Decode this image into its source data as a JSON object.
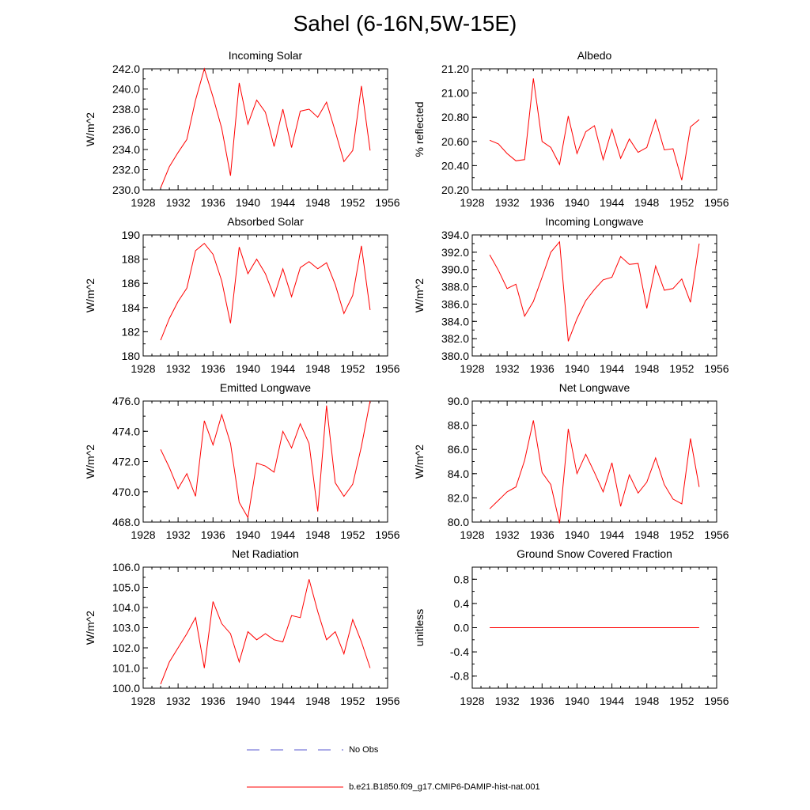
{
  "figure": {
    "title": "Sahel (6-16N,5W-15E)"
  },
  "legend": {
    "items": [
      {
        "label": "No Obs",
        "color": "#5a5ad0",
        "dash": true
      },
      {
        "label": "b.e21.B1850.f09_g17.CMIP6-DAMIP-hist-nat.001",
        "color": "#ff0000",
        "dash": false
      }
    ]
  },
  "chart_data": [
    {
      "type": "line",
      "title": "Incoming Solar",
      "ylabel": "W/m^2",
      "xlim": [
        1928,
        1956
      ],
      "ylim": [
        230.0,
        242.0
      ],
      "yticks": [
        "230.0",
        "232.0",
        "234.0",
        "236.0",
        "238.0",
        "240.0",
        "242.0"
      ],
      "xticks": [
        "1928",
        "1932",
        "1936",
        "1940",
        "1944",
        "1948",
        "1952",
        "1956"
      ],
      "x": [
        1930,
        1931,
        1932,
        1933,
        1934,
        1935,
        1936,
        1937,
        1938,
        1939,
        1940,
        1941,
        1942,
        1943,
        1944,
        1945,
        1946,
        1947,
        1948,
        1949,
        1950,
        1951,
        1952,
        1953,
        1954
      ],
      "series": [
        {
          "color": "#ff0000",
          "values": [
            230.2,
            232.3,
            233.7,
            235.0,
            238.9,
            242.0,
            239.2,
            236.1,
            231.4,
            240.6,
            236.5,
            238.9,
            237.7,
            234.3,
            238.0,
            234.2,
            237.8,
            238.0,
            237.2,
            238.7,
            235.8,
            232.8,
            233.9,
            240.3,
            233.9
          ]
        }
      ]
    },
    {
      "type": "line",
      "title": "Albedo",
      "ylabel": "% reflected",
      "xlim": [
        1928,
        1956
      ],
      "ylim": [
        20.2,
        21.2
      ],
      "yticks": [
        "20.20",
        "20.40",
        "20.60",
        "20.80",
        "21.00",
        "21.20"
      ],
      "xticks": [
        "1928",
        "1932",
        "1936",
        "1940",
        "1944",
        "1948",
        "1952",
        "1956"
      ],
      "x": [
        1930,
        1931,
        1932,
        1933,
        1934,
        1935,
        1936,
        1937,
        1938,
        1939,
        1940,
        1941,
        1942,
        1943,
        1944,
        1945,
        1946,
        1947,
        1948,
        1949,
        1950,
        1951,
        1952,
        1953,
        1954
      ],
      "series": [
        {
          "color": "#ff0000",
          "values": [
            20.61,
            20.58,
            20.5,
            20.44,
            20.45,
            21.12,
            20.6,
            20.55,
            20.41,
            20.81,
            20.5,
            20.68,
            20.73,
            20.45,
            20.7,
            20.46,
            20.62,
            20.51,
            20.55,
            20.78,
            20.53,
            20.54,
            20.28,
            20.72,
            20.78
          ]
        }
      ]
    },
    {
      "type": "line",
      "title": "Absorbed Solar",
      "ylabel": "W/m^2",
      "xlim": [
        1928,
        1956
      ],
      "ylim": [
        180,
        190
      ],
      "yticks": [
        "180",
        "182",
        "184",
        "186",
        "188",
        "190"
      ],
      "xticks": [
        "1928",
        "1932",
        "1936",
        "1940",
        "1944",
        "1948",
        "1952",
        "1956"
      ],
      "x": [
        1930,
        1931,
        1932,
        1933,
        1934,
        1935,
        1936,
        1937,
        1938,
        1939,
        1940,
        1941,
        1942,
        1943,
        1944,
        1945,
        1946,
        1947,
        1948,
        1949,
        1950,
        1951,
        1952,
        1953,
        1954
      ],
      "series": [
        {
          "color": "#ff0000",
          "values": [
            181.3,
            183.1,
            184.5,
            185.6,
            188.7,
            189.3,
            188.4,
            186.2,
            182.7,
            189.0,
            186.8,
            188.0,
            186.8,
            184.9,
            187.2,
            184.9,
            187.3,
            187.8,
            187.2,
            187.7,
            185.9,
            183.5,
            185.0,
            189.1,
            183.8
          ]
        }
      ]
    },
    {
      "type": "line",
      "title": "Incoming Longwave",
      "ylabel": "W/m^2",
      "xlim": [
        1928,
        1956
      ],
      "ylim": [
        380.0,
        394.0
      ],
      "yticks": [
        "380.0",
        "382.0",
        "384.0",
        "386.0",
        "388.0",
        "390.0",
        "392.0",
        "394.0"
      ],
      "xticks": [
        "1928",
        "1932",
        "1936",
        "1940",
        "1944",
        "1948",
        "1952",
        "1956"
      ],
      "x": [
        1930,
        1931,
        1932,
        1933,
        1934,
        1935,
        1936,
        1937,
        1938,
        1939,
        1940,
        1941,
        1942,
        1943,
        1944,
        1945,
        1946,
        1947,
        1948,
        1949,
        1950,
        1951,
        1952,
        1953,
        1954
      ],
      "series": [
        {
          "color": "#ff0000",
          "values": [
            391.7,
            389.9,
            387.8,
            388.3,
            384.6,
            386.3,
            389.1,
            392.0,
            393.2,
            381.7,
            384.3,
            386.4,
            387.7,
            388.8,
            389.1,
            391.5,
            390.6,
            390.7,
            385.5,
            390.4,
            387.6,
            387.8,
            388.9,
            386.2,
            393.0
          ]
        }
      ]
    },
    {
      "type": "line",
      "title": "Emitted Longwave",
      "ylabel": "W/m^2",
      "xlim": [
        1928,
        1956
      ],
      "ylim": [
        468.0,
        476.0
      ],
      "yticks": [
        "468.0",
        "470.0",
        "472.0",
        "474.0",
        "476.0"
      ],
      "xticks": [
        "1928",
        "1932",
        "1936",
        "1940",
        "1944",
        "1948",
        "1952",
        "1956"
      ],
      "x": [
        1930,
        1931,
        1932,
        1933,
        1934,
        1935,
        1936,
        1937,
        1938,
        1939,
        1940,
        1941,
        1942,
        1943,
        1944,
        1945,
        1946,
        1947,
        1948,
        1949,
        1950,
        1951,
        1952,
        1953,
        1954
      ],
      "series": [
        {
          "color": "#ff0000",
          "values": [
            472.8,
            471.6,
            470.2,
            471.2,
            469.7,
            474.7,
            473.1,
            475.1,
            473.2,
            469.3,
            468.3,
            471.9,
            471.7,
            471.3,
            474.0,
            472.9,
            474.5,
            473.2,
            468.7,
            475.7,
            470.6,
            469.7,
            470.5,
            473.0,
            476.0
          ]
        }
      ]
    },
    {
      "type": "line",
      "title": "Net Longwave",
      "ylabel": "W/m^2",
      "xlim": [
        1928,
        1956
      ],
      "ylim": [
        80.0,
        90.0
      ],
      "yticks": [
        "80.0",
        "82.0",
        "84.0",
        "86.0",
        "88.0",
        "90.0"
      ],
      "xticks": [
        "1928",
        "1932",
        "1936",
        "1940",
        "1944",
        "1948",
        "1952",
        "1956"
      ],
      "x": [
        1930,
        1931,
        1932,
        1933,
        1934,
        1935,
        1936,
        1937,
        1938,
        1939,
        1940,
        1941,
        1942,
        1943,
        1944,
        1945,
        1946,
        1947,
        1948,
        1949,
        1950,
        1951,
        1952,
        1953,
        1954
      ],
      "series": [
        {
          "color": "#ff0000",
          "values": [
            81.1,
            81.8,
            82.5,
            82.9,
            85.1,
            88.4,
            84.1,
            83.1,
            79.9,
            87.7,
            84.0,
            85.6,
            84.1,
            82.5,
            84.9,
            81.3,
            83.9,
            82.4,
            83.3,
            85.3,
            83.1,
            81.9,
            81.5,
            86.9,
            82.9
          ]
        }
      ]
    },
    {
      "type": "line",
      "title": "Net Radiation",
      "ylabel": "W/m^2",
      "xlim": [
        1928,
        1956
      ],
      "ylim": [
        100.0,
        106.0
      ],
      "yticks": [
        "100.0",
        "101.0",
        "102.0",
        "103.0",
        "104.0",
        "105.0",
        "106.0"
      ],
      "xticks": [
        "1928",
        "1932",
        "1936",
        "1940",
        "1944",
        "1948",
        "1952",
        "1956"
      ],
      "x": [
        1930,
        1931,
        1932,
        1933,
        1934,
        1935,
        1936,
        1937,
        1938,
        1939,
        1940,
        1941,
        1942,
        1943,
        1944,
        1945,
        1946,
        1947,
        1948,
        1949,
        1950,
        1951,
        1952,
        1953,
        1954
      ],
      "series": [
        {
          "color": "#ff0000",
          "values": [
            100.2,
            101.3,
            102.0,
            102.7,
            103.5,
            101.0,
            104.3,
            103.2,
            102.7,
            101.3,
            102.8,
            102.4,
            102.7,
            102.4,
            102.3,
            103.6,
            103.5,
            105.4,
            103.8,
            102.4,
            102.8,
            101.7,
            103.4,
            102.3,
            101.0
          ]
        }
      ]
    },
    {
      "type": "line",
      "title": "Ground Snow Covered Fraction",
      "ylabel": "unitless",
      "xlim": [
        1928,
        1956
      ],
      "ylim": [
        -1.0,
        1.0
      ],
      "yticks": [
        "-0.8",
        "-0.4",
        "0.0",
        "0.4",
        "0.8"
      ],
      "ytick_values": [
        -0.8,
        -0.4,
        0.0,
        0.4,
        0.8
      ],
      "xticks": [
        "1928",
        "1932",
        "1936",
        "1940",
        "1944",
        "1948",
        "1952",
        "1956"
      ],
      "x": [
        1930,
        1931,
        1932,
        1933,
        1934,
        1935,
        1936,
        1937,
        1938,
        1939,
        1940,
        1941,
        1942,
        1943,
        1944,
        1945,
        1946,
        1947,
        1948,
        1949,
        1950,
        1951,
        1952,
        1953,
        1954
      ],
      "series": [
        {
          "color": "#ff0000",
          "values": [
            0,
            0,
            0,
            0,
            0,
            0,
            0,
            0,
            0,
            0,
            0,
            0,
            0,
            0,
            0,
            0,
            0,
            0,
            0,
            0,
            0,
            0,
            0,
            0,
            0
          ]
        }
      ]
    }
  ]
}
